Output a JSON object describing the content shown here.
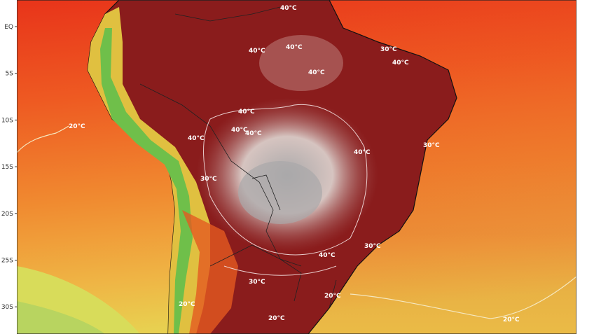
{
  "map": {
    "lat_ticks": [
      "EQ",
      "5S",
      "10S",
      "15S",
      "20S",
      "25S",
      "30S"
    ],
    "contour_labels": [
      {
        "text": "40°C",
        "lat": "~1N",
        "lon": "~-48"
      },
      {
        "text": "40°C",
        "lat": "~3S",
        "lon": "~-55"
      },
      {
        "text": "40°C",
        "lat": "~3S",
        "lon": "~-50"
      },
      {
        "text": "40°C",
        "lat": "~5S",
        "lon": "~-46"
      },
      {
        "text": "40°C",
        "lat": "~4S",
        "lon": "~-38"
      },
      {
        "text": "40°C",
        "lat": "~9S",
        "lon": "~-56"
      },
      {
        "text": "40°C",
        "lat": "~11S",
        "lon": "~-57"
      },
      {
        "text": "40°C",
        "lat": "~11S",
        "lon": "~-63"
      },
      {
        "text": "40°C",
        "lat": "~10S",
        "lon": "~-67"
      },
      {
        "text": "40°C",
        "lat": "~12S",
        "lon": "~-41"
      },
      {
        "text": "40°C",
        "lat": "~24S",
        "lon": "~-52"
      },
      {
        "text": "30°C",
        "lat": "~2S",
        "lon": "~-34"
      },
      {
        "text": "30°C",
        "lat": "~12S",
        "lon": "~-37"
      },
      {
        "text": "30°C",
        "lat": "~17S",
        "lon": "~-64"
      },
      {
        "text": "30°C",
        "lat": "~23S",
        "lon": "~-47"
      },
      {
        "text": "30°C",
        "lat": "~27S",
        "lon": "~-58"
      },
      {
        "text": "20°C",
        "lat": "~11S",
        "lon": "~-87"
      },
      {
        "text": "20°C",
        "lat": "~30S",
        "lon": "~-68"
      },
      {
        "text": "20°C",
        "lat": "~32S",
        "lon": "~-60"
      },
      {
        "text": "20°C",
        "lat": "~30S",
        "lon": "~-49"
      },
      {
        "text": "20°C",
        "lat": "~32S",
        "lon": "~-28"
      }
    ],
    "colors": {
      "hot_ocean": "#e8341a",
      "warm_ocean": "#f07a2a",
      "mild_ocean": "#f2b048",
      "cool": "#d6e05c",
      "land_extreme": "#8a1c1c",
      "land_peak": "#d9c0bb",
      "land_core": "#b3b0b0",
      "andes": "#6fbf4a"
    }
  }
}
